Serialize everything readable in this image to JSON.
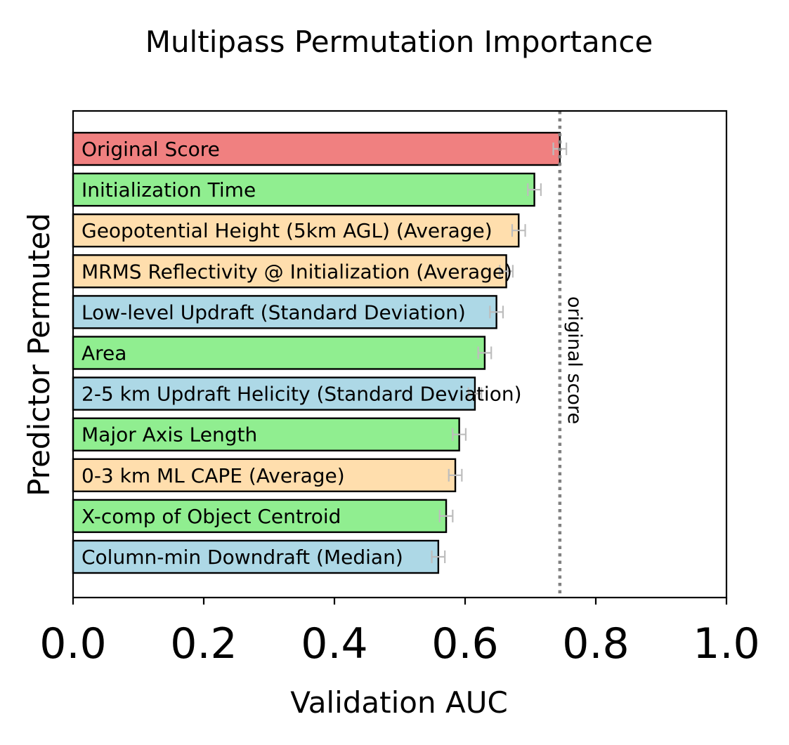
{
  "chart_data": {
    "type": "bar",
    "orientation": "horizontal",
    "title": "Multipass Permutation Importance",
    "xlabel": "Validation AUC",
    "ylabel": "Predictor Permuted",
    "xlim": [
      0.0,
      1.0
    ],
    "xticks": [
      "0.0",
      "0.2",
      "0.4",
      "0.6",
      "0.8",
      "1.0"
    ],
    "grid": false,
    "reference_line": {
      "value": 0.745,
      "label": "original score",
      "color": "#808080"
    },
    "bars": [
      {
        "label": "Original Score",
        "value": 0.745,
        "error": 0.01,
        "color": "#f08080"
      },
      {
        "label": "Initialization Time",
        "value": 0.706,
        "error": 0.01,
        "color": "#90ee90"
      },
      {
        "label": "Geopotential Height (5km AGL) (Average)",
        "value": 0.682,
        "error": 0.01,
        "color": "#ffdead"
      },
      {
        "label": "MRMS Reflectivity @ Initialization (Average)",
        "value": 0.663,
        "error": 0.01,
        "color": "#ffdead"
      },
      {
        "label": "Low-level Updraft (Standard Deviation)",
        "value": 0.648,
        "error": 0.01,
        "color": "#add8e6"
      },
      {
        "label": "Area",
        "value": 0.63,
        "error": 0.01,
        "color": "#90ee90"
      },
      {
        "label": "2-5 km Updraft Helicity (Standard Deviation)",
        "value": 0.615,
        "error": 0.01,
        "color": "#add8e6"
      },
      {
        "label": "Major Axis Length",
        "value": 0.591,
        "error": 0.01,
        "color": "#90ee90"
      },
      {
        "label": "0-3 km ML CAPE (Average)",
        "value": 0.585,
        "error": 0.01,
        "color": "#ffdead"
      },
      {
        "label": "X-comp of Object Centroid",
        "value": 0.571,
        "error": 0.01,
        "color": "#90ee90"
      },
      {
        "label": "Column-min Downdraft (Median)",
        "value": 0.559,
        "error": 0.01,
        "color": "#add8e6"
      }
    ]
  }
}
